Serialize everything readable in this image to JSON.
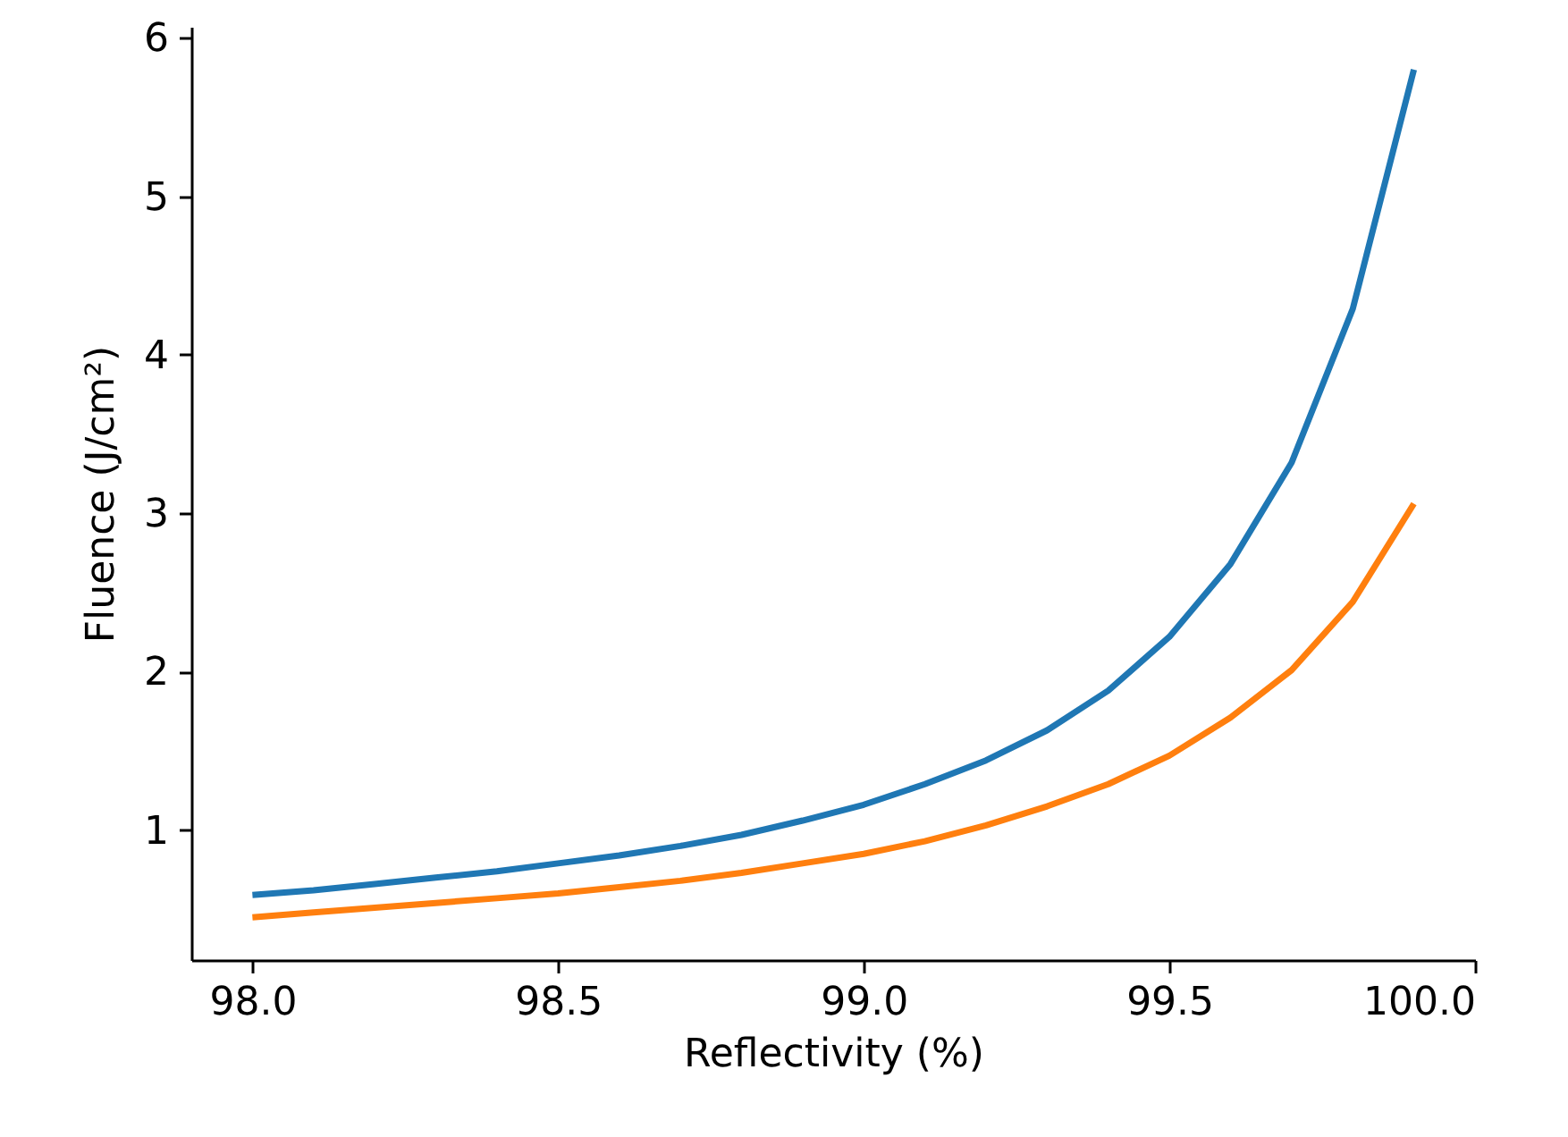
{
  "chart_data": {
    "type": "line",
    "xlabel": "Reflectivity (%)",
    "ylabel": "Fluence (J/cm²)",
    "x": [
      98.0,
      98.1,
      98.2,
      98.3,
      98.4,
      98.5,
      98.6,
      98.7,
      98.8,
      98.9,
      99.0,
      99.1,
      99.2,
      99.3,
      99.4,
      99.5,
      99.6,
      99.7,
      99.8,
      99.9
    ],
    "series": [
      {
        "color": "#1f77b4",
        "values": [
          0.59,
          0.62,
          0.66,
          0.7,
          0.74,
          0.79,
          0.84,
          0.9,
          0.97,
          1.06,
          1.16,
          1.29,
          1.44,
          1.63,
          1.88,
          2.22,
          2.68,
          3.32,
          4.29,
          5.8
        ]
      },
      {
        "color": "#ff7f0e",
        "values": [
          0.45,
          0.48,
          0.51,
          0.54,
          0.57,
          0.6,
          0.64,
          0.68,
          0.73,
          0.79,
          0.85,
          0.93,
          1.03,
          1.15,
          1.29,
          1.47,
          1.71,
          2.01,
          2.44,
          3.06
        ]
      }
    ],
    "xlim": [
      97.9,
      100.0
    ],
    "ylim": [
      0.18,
      6.07
    ],
    "xticks": [
      {
        "value": 98,
        "label": "98.0"
      },
      {
        "value": 98.5,
        "label": "98.5"
      },
      {
        "value": 99,
        "label": "99.0"
      },
      {
        "value": 99.5,
        "label": "99.5"
      },
      {
        "value": 100,
        "label": "100.0"
      }
    ],
    "yticks": [
      1,
      2,
      3,
      4,
      5,
      6
    ],
    "grid": false,
    "marker": "none",
    "line_style": "solid"
  }
}
